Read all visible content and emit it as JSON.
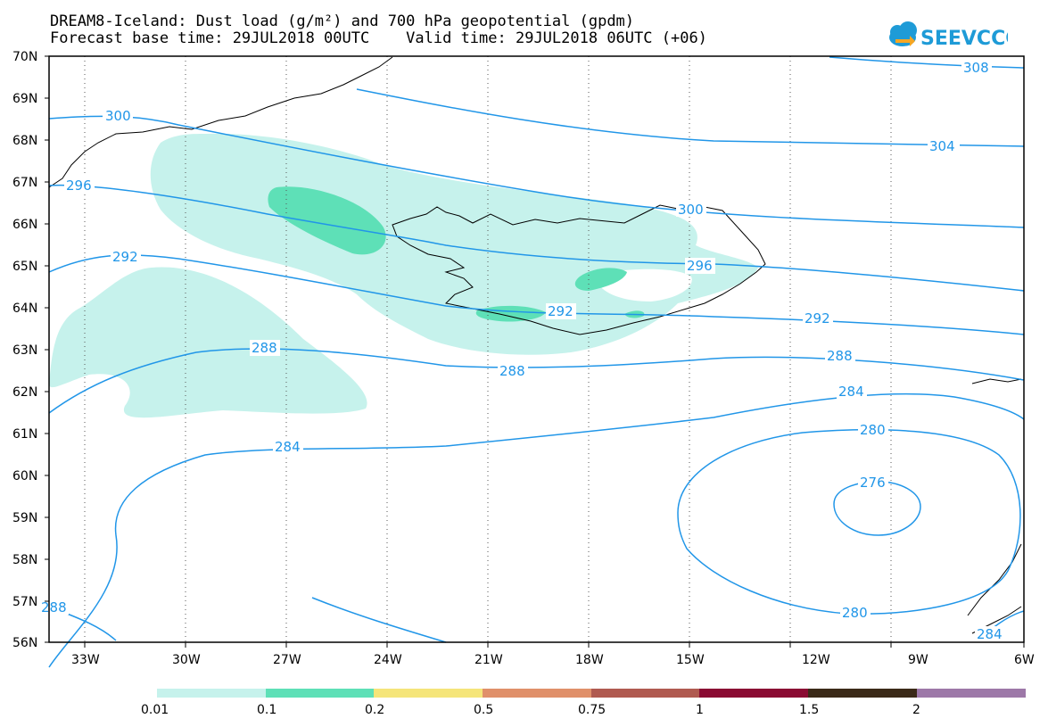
{
  "header": {
    "title_line1": "DREAM8-Iceland: Dust load (g/m²) and 700 hPa geopotential (gpdm)",
    "title_line2": "Forecast base time: 29JUL2018 00UTC    Valid time: 29JUL2018 06UTC (+06)"
  },
  "logo": {
    "text": "SEEVCCC",
    "color": "#1e9bd7"
  },
  "axes": {
    "lat_labels": [
      "70N",
      "69N",
      "68N",
      "67N",
      "66N",
      "65N",
      "64N",
      "63N",
      "62N",
      "61N",
      "60N",
      "59N",
      "58N",
      "57N",
      "56N"
    ],
    "lon_labels": [
      "33W",
      "30W",
      "27W",
      "24W",
      "21W",
      "18W",
      "15W",
      "12W",
      "9W",
      "6W"
    ]
  },
  "contours": {
    "color": "#2196e8",
    "labels": [
      "308",
      "304",
      "300",
      "300",
      "296",
      "296",
      "292",
      "292",
      "292",
      "288",
      "288",
      "288",
      "284",
      "284",
      "284",
      "280",
      "280",
      "276",
      "288"
    ]
  },
  "colorbar": {
    "ticks": [
      "0.01",
      "0.1",
      "0.2",
      "0.5",
      "0.75",
      "1",
      "1.5",
      "2"
    ],
    "colors": [
      "#c6f2ec",
      "#5ee0b7",
      "#f5e57a",
      "#e0906a",
      "#b05a50",
      "#8a0a32",
      "#3b2a18",
      "#9d78a8"
    ]
  },
  "dust_colors": {
    "light": "#c6f2ec",
    "medium": "#5ee0b7"
  }
}
